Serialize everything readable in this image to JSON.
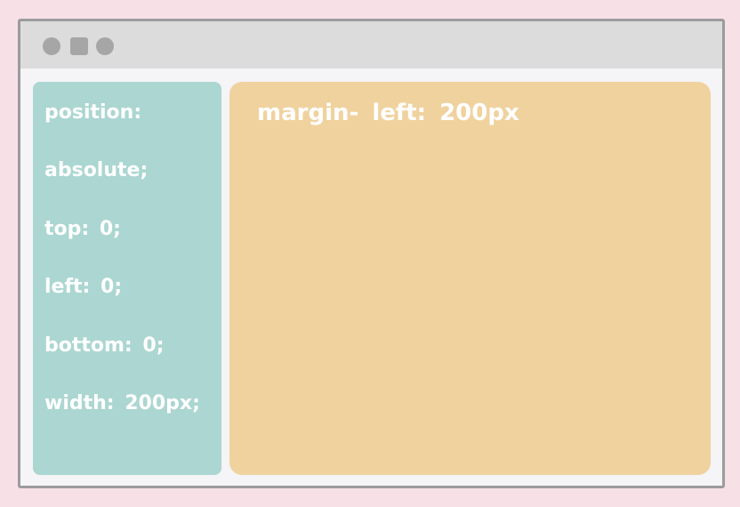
{
  "window": {
    "controls": [
      {
        "name": "window-close-control",
        "shape": "circle"
      },
      {
        "name": "window-minimize-control",
        "shape": "square"
      },
      {
        "name": "window-maximize-control",
        "shape": "circle"
      }
    ],
    "control_color": "#a6a6a6"
  },
  "sidebar": {
    "color": "#abd6d1",
    "lines": [
      "position:",
      "absolute;",
      "top: 0;",
      "left: 0;",
      "bottom: 0;",
      "width: 200px;"
    ]
  },
  "main": {
    "color": "#f0d29f",
    "heading": "margin- left: 200px"
  }
}
